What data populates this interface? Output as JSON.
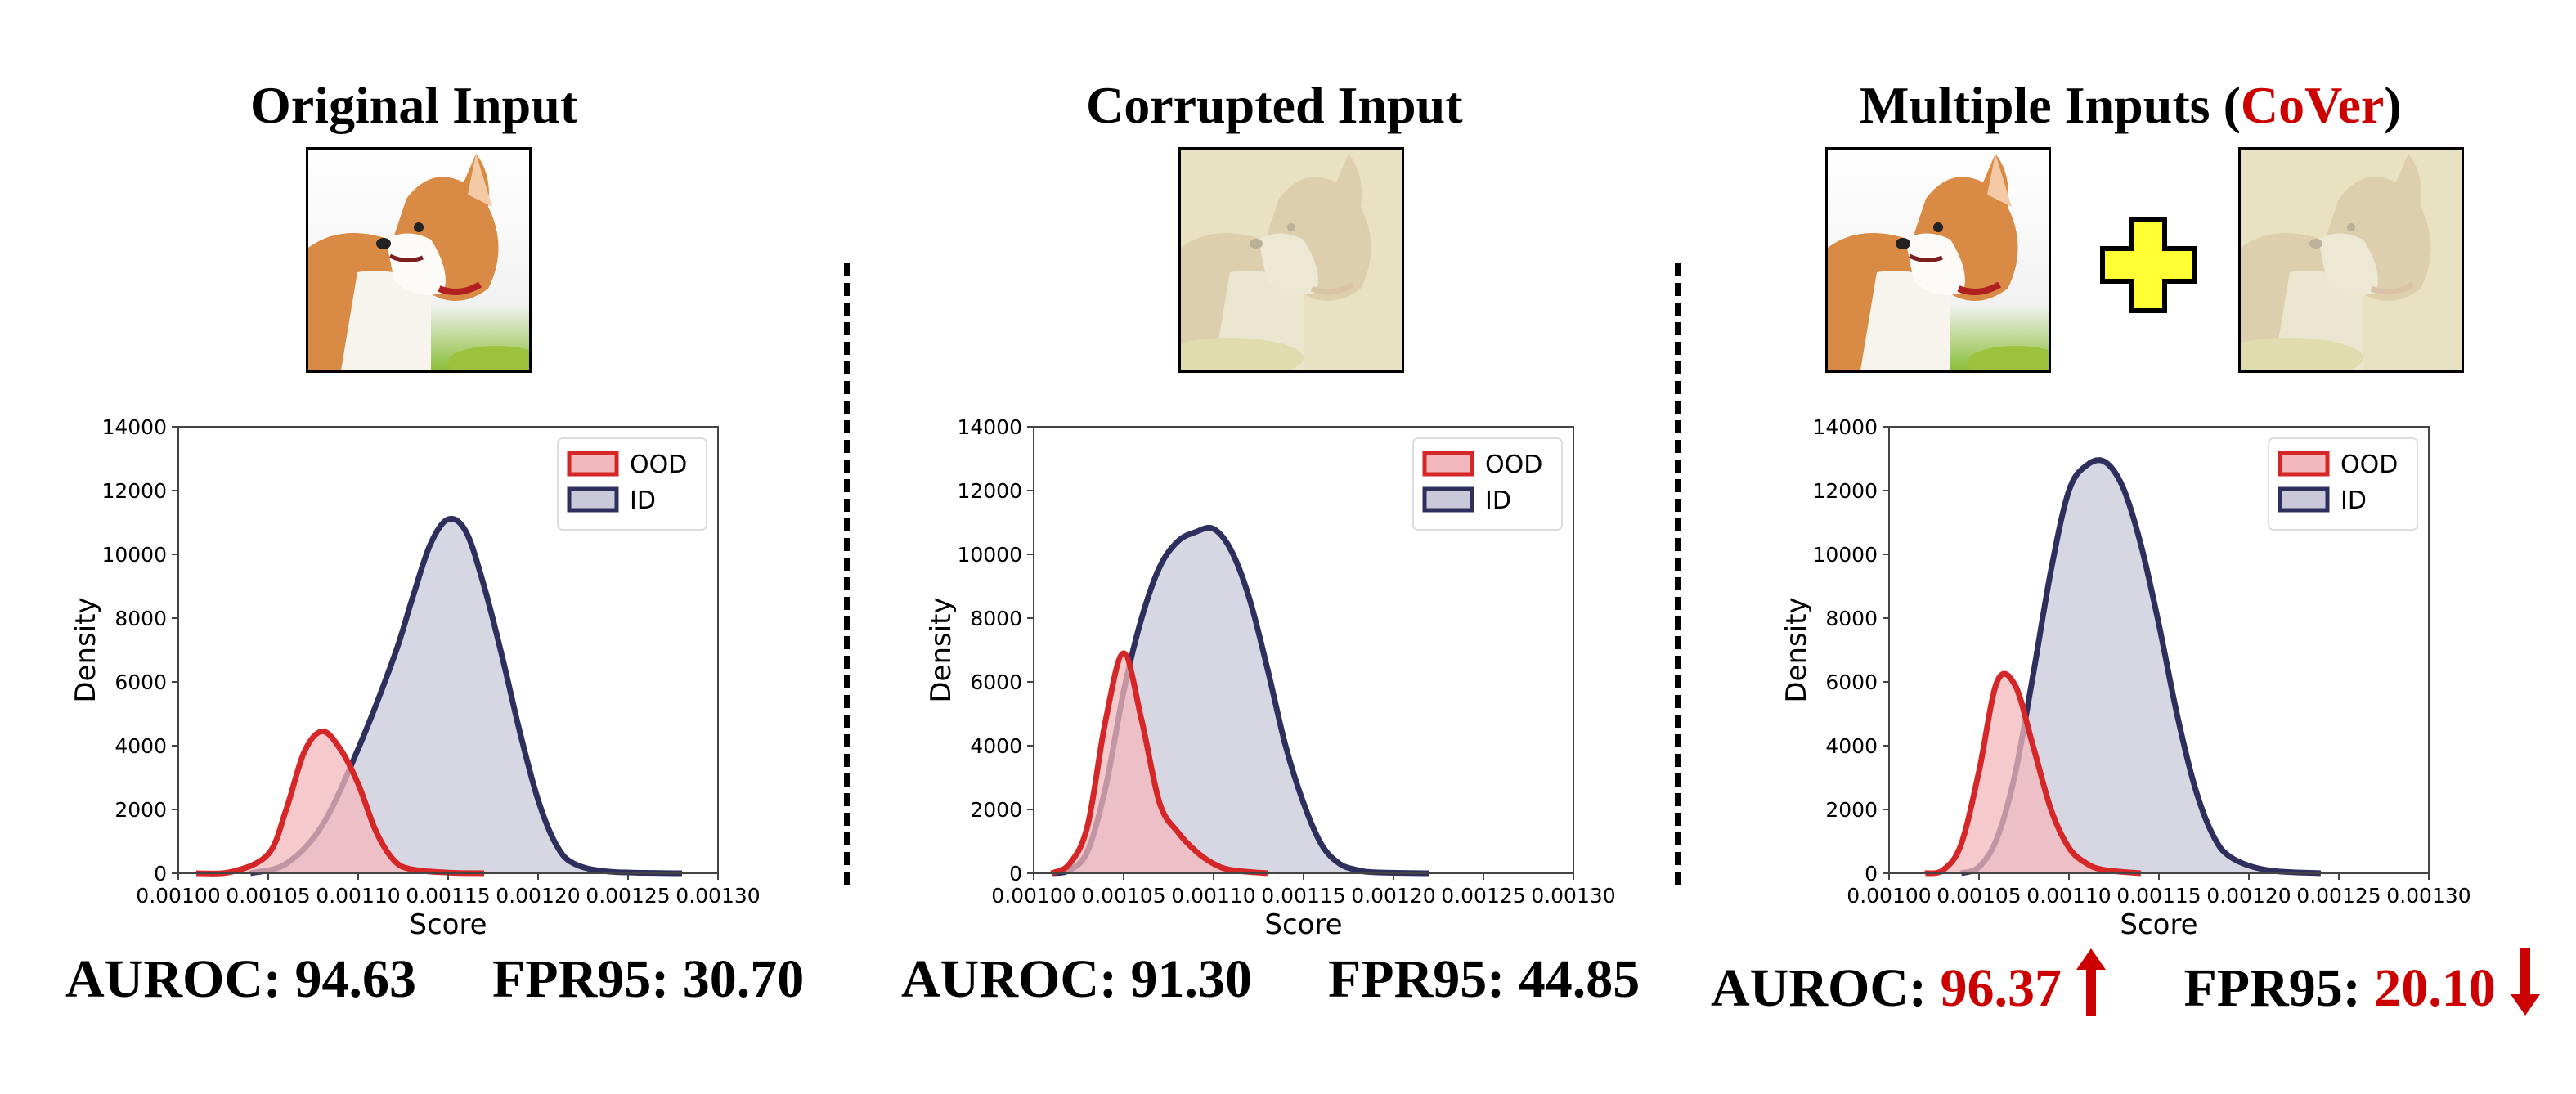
{
  "panels": [
    {
      "title": "Original Input",
      "auroc_label": "AUROC:",
      "auroc": "94.63",
      "fpr_label": "FPR95:",
      "fpr": "30.70",
      "highlight": false
    },
    {
      "title": "Corrupted Input",
      "auroc_label": "AUROC:",
      "auroc": "91.30",
      "fpr_label": "FPR95:",
      "fpr": "44.85",
      "highlight": false
    },
    {
      "title_prefix": "Multiple Inputs (",
      "title_highlight": "CoVer",
      "title_suffix": ")",
      "auroc_label": "AUROC:",
      "auroc": "96.37",
      "fpr_label": "FPR95:",
      "fpr": "20.10",
      "highlight": true,
      "auroc_arrow": "up-arrow-icon",
      "fpr_arrow": "down-arrow-icon"
    }
  ],
  "plus_icon": "plus-icon",
  "colors": {
    "ood": "#d62728",
    "id": "#2f2f5e",
    "ood_fill": "#f3b8bc",
    "id_fill": "#c9c9d9",
    "highlight": "#cc0000",
    "plus": "#ffff33"
  },
  "chart_data": [
    {
      "type": "area",
      "xlabel": "Score",
      "ylabel": "Density",
      "xlim": [
        0.001,
        0.0013
      ],
      "ylim": [
        0,
        14000
      ],
      "xticks": [
        "0.00100",
        "0.00105",
        "0.00110",
        "0.00115",
        "0.00120",
        "0.00125",
        "0.00130"
      ],
      "yticks": [
        "0",
        "2000",
        "4000",
        "6000",
        "8000",
        "10000",
        "12000",
        "14000"
      ],
      "legend": "top-right",
      "series": [
        {
          "name": "OOD",
          "x": [
            0.00101,
            0.00103,
            0.00105,
            0.00106,
            0.00107,
            0.00108,
            0.00109,
            0.0011,
            0.00111,
            0.00112,
            0.00113,
            0.00115,
            0.00117
          ],
          "y": [
            0,
            50,
            600,
            2000,
            3800,
            4450,
            3900,
            2800,
            1300,
            400,
            120,
            20,
            0
          ]
        },
        {
          "name": "ID",
          "x": [
            0.00104,
            0.00106,
            0.00108,
            0.0011,
            0.00112,
            0.00113,
            0.00114,
            0.00115,
            0.00116,
            0.00117,
            0.00118,
            0.00119,
            0.0012,
            0.00121,
            0.00122,
            0.00124,
            0.00128
          ],
          "y": [
            0,
            300,
            1500,
            3900,
            6800,
            8600,
            10300,
            11100,
            10700,
            9000,
            6800,
            4400,
            2300,
            900,
            300,
            50,
            0
          ]
        }
      ]
    },
    {
      "type": "area",
      "xlabel": "Score",
      "ylabel": "Density",
      "xlim": [
        0.001,
        0.0013
      ],
      "ylim": [
        0,
        14000
      ],
      "xticks": [
        "0.00100",
        "0.00105",
        "0.00110",
        "0.00115",
        "0.00120",
        "0.00125",
        "0.00130"
      ],
      "yticks": [
        "0",
        "2000",
        "4000",
        "6000",
        "8000",
        "10000",
        "12000",
        "14000"
      ],
      "legend": "top-right",
      "series": [
        {
          "name": "OOD",
          "x": [
            0.00101,
            0.00102,
            0.00103,
            0.00104,
            0.00105,
            0.00106,
            0.00107,
            0.00108,
            0.00109,
            0.0011,
            0.00111,
            0.00113
          ],
          "y": [
            0,
            300,
            1500,
            4800,
            6900,
            4800,
            2200,
            1300,
            700,
            300,
            100,
            0
          ]
        },
        {
          "name": "ID",
          "x": [
            0.00101,
            0.00102,
            0.00103,
            0.00104,
            0.00105,
            0.00106,
            0.00107,
            0.00108,
            0.00109,
            0.0011,
            0.00111,
            0.00112,
            0.00113,
            0.00114,
            0.00115,
            0.00116,
            0.00117,
            0.00118,
            0.00119,
            0.00122
          ],
          "y": [
            0,
            100,
            700,
            2700,
            5700,
            8000,
            9600,
            10400,
            10700,
            10800,
            10100,
            8600,
            6400,
            4000,
            2200,
            900,
            300,
            100,
            30,
            0
          ]
        }
      ]
    },
    {
      "type": "area",
      "xlabel": "Score",
      "ylabel": "Density",
      "xlim": [
        0.001,
        0.0013
      ],
      "ylim": [
        0,
        14000
      ],
      "xticks": [
        "0.00100",
        "0.00105",
        "0.00110",
        "0.00115",
        "0.00120",
        "0.00125",
        "0.00130"
      ],
      "yticks": [
        "0",
        "2000",
        "4000",
        "6000",
        "8000",
        "10000",
        "12000",
        "14000"
      ],
      "legend": "top-right",
      "series": [
        {
          "name": "OOD",
          "x": [
            0.00102,
            0.00103,
            0.00104,
            0.00105,
            0.00106,
            0.00107,
            0.00108,
            0.00109,
            0.0011,
            0.00111,
            0.00112,
            0.00114
          ],
          "y": [
            0,
            100,
            900,
            3200,
            6000,
            5900,
            4000,
            2000,
            800,
            300,
            100,
            0
          ]
        },
        {
          "name": "ID",
          "x": [
            0.00104,
            0.00105,
            0.00106,
            0.00107,
            0.00108,
            0.00109,
            0.0011,
            0.00111,
            0.00112,
            0.00113,
            0.00114,
            0.00115,
            0.00116,
            0.00117,
            0.00118,
            0.00119,
            0.00121,
            0.00124
          ],
          "y": [
            0,
            200,
            1100,
            3100,
            6200,
            9500,
            12000,
            12800,
            12900,
            12100,
            10300,
            7800,
            5000,
            2700,
            1200,
            500,
            100,
            0
          ]
        }
      ]
    }
  ]
}
